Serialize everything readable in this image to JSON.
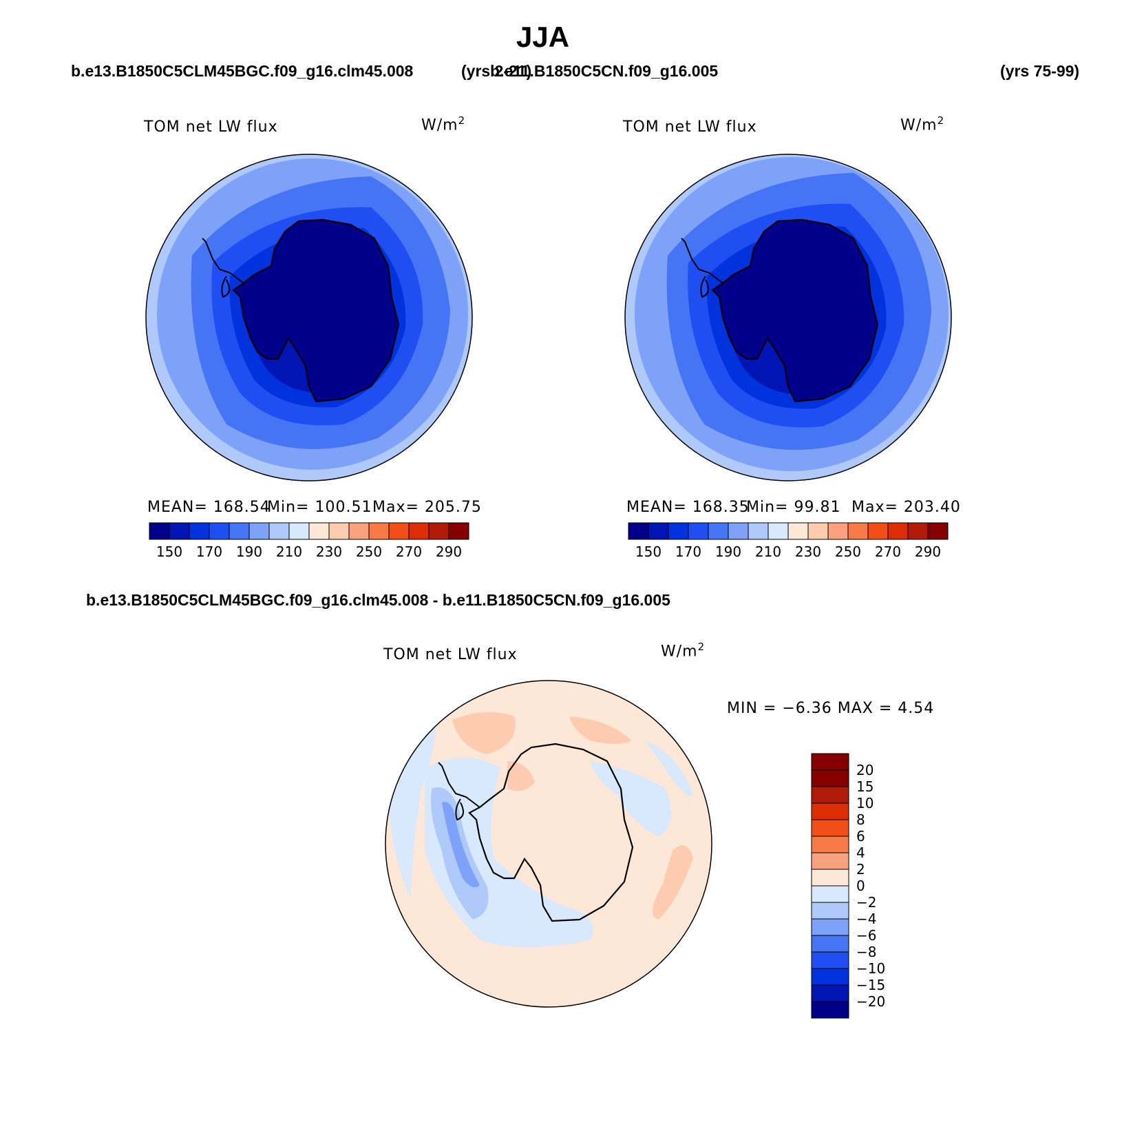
{
  "season": "JJA",
  "case1": {
    "name": "b.e13.B1850C5CLM45BGC.f09_g16.clm45.008",
    "years": "(yrs 2-21)"
  },
  "case2": {
    "name": "b.e11.B1850C5CN.f09_g16.005",
    "years": "(yrs 75-99)"
  },
  "diff_title": "b.e13.B1850C5CLM45BGC.f09_g16.clm45.008 - b.e11.B1850C5CN.f09_g16.005",
  "variable": "TOM net LW flux",
  "units_base": "W/m",
  "units_exp": "2",
  "panel1": {
    "mean_label": "MEAN= 168.54",
    "min_label": "Min= 100.51",
    "max_label": "Max= 205.75"
  },
  "panel2": {
    "mean_label": "MEAN= 168.35",
    "min_label": "Min=  99.81",
    "max_label": "Max= 203.40"
  },
  "diff_panel": {
    "minmax_label": "MIN =  −6.36 MAX =   4.54"
  },
  "abs_colorbar": {
    "colors": [
      "#00008b",
      "#0015b4",
      "#0033dd",
      "#1f4ff2",
      "#4574f5",
      "#7ea2f8",
      "#b0c9fb",
      "#d8e8fd",
      "#fde7d6",
      "#fccbb0",
      "#faa27e",
      "#f77a47",
      "#f24f17",
      "#dd2d05",
      "#b01a07",
      "#850000"
    ],
    "labels": [
      "150",
      "170",
      "190",
      "210",
      "230",
      "250",
      "270",
      "290"
    ]
  },
  "diff_colorbar": {
    "colors": [
      "#850000",
      "#b01a07",
      "#dd2d05",
      "#f24f17",
      "#f77a47",
      "#faa27e",
      "#fde7d6",
      "#d8e8fd",
      "#b0c9fb",
      "#7ea2f8",
      "#4574f5",
      "#1f4ff2",
      "#0033dd",
      "#0015b4",
      "#00008b"
    ],
    "labels": [
      "20",
      "15",
      "10",
      "8",
      "6",
      "4",
      "2",
      "0",
      "−2",
      "−4",
      "−6",
      "−8",
      "−10",
      "−15",
      "−20"
    ]
  }
}
